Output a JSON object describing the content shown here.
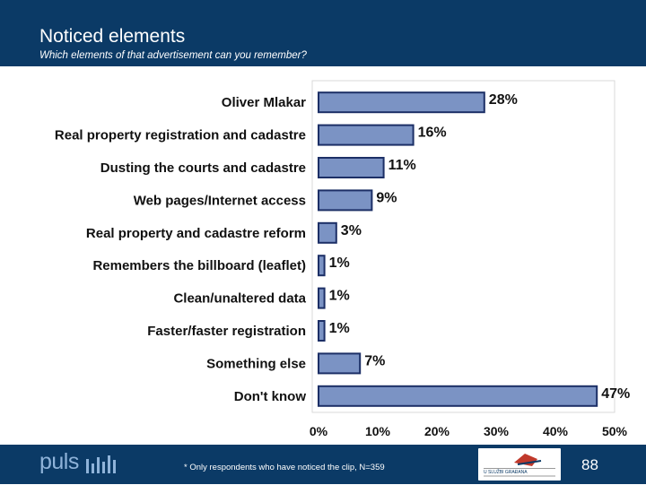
{
  "header": {
    "title": "Noticed elements",
    "subtitle": "Which elements of that advertisement can you remember?"
  },
  "chart_data": {
    "type": "bar",
    "orientation": "horizontal",
    "categories": [
      "Oliver Mlakar",
      "Real property registration and cadastre",
      "Dusting the courts and cadastre",
      "Web pages/Internet access",
      "Real property and cadastre reform",
      "Remembers the billboard (leaflet)",
      "Clean/unaltered data",
      "Faster/faster registration",
      "Something else",
      "Don't know"
    ],
    "values": [
      28,
      16,
      11,
      9,
      3,
      1,
      1,
      1,
      7,
      47
    ],
    "data_labels": [
      "28%",
      "16%",
      "11%",
      "9%",
      "3%",
      "1%",
      "1%",
      "1%",
      "7%",
      "47%"
    ],
    "xlim": [
      0,
      50
    ],
    "xticks": [
      "0%",
      "10%",
      "20%",
      "30%",
      "40%",
      "50%"
    ],
    "bar_color": "#7b93c4",
    "bar_edge_color": "#1c2f66",
    "grid": false
  },
  "footer": {
    "logo": "puls",
    "note": "* Only respondents who have noticed the clip, N=359",
    "partner_text": "U SLUŽBI GRAĐANA",
    "page_number": "88"
  },
  "colors": {
    "header_bg": "#0b3a66",
    "footer_bg": "#0b3a66"
  }
}
